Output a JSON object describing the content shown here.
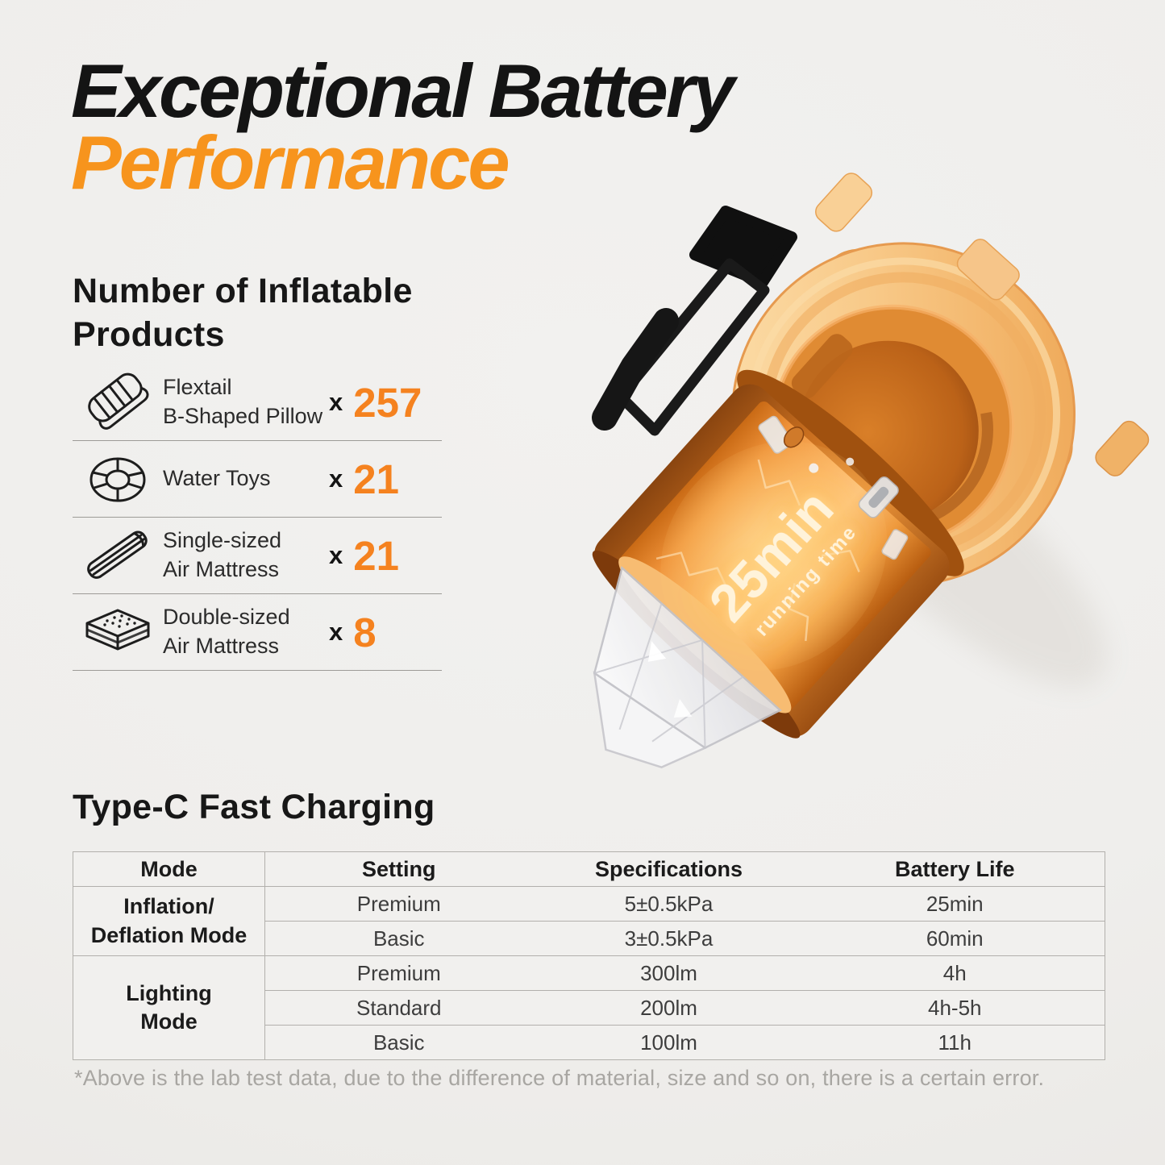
{
  "page": {
    "background": "#f0efec",
    "accent_orange": "#F5821F",
    "title": {
      "line1": "Exceptional Battery",
      "line2": "Performance"
    }
  },
  "inflatable": {
    "heading_lines": [
      "Number of Inflatable",
      "Products"
    ],
    "times_symbol": "x",
    "items": [
      {
        "icon": "pillow-icon",
        "label_lines": [
          "Flextail",
          "B-Shaped Pillow"
        ],
        "count": "257"
      },
      {
        "icon": "swim-ring-icon",
        "label_lines": [
          "Water Toys"
        ],
        "count": "21"
      },
      {
        "icon": "single-mattress-icon",
        "label_lines": [
          "Single-sized",
          "Air Mattress"
        ],
        "count": "21"
      },
      {
        "icon": "double-mattress-icon",
        "label_lines": [
          "Double-sized",
          "Air Mattress"
        ],
        "count": "8"
      }
    ]
  },
  "product": {
    "badge_line1": "25min",
    "badge_line2": "running time"
  },
  "charging": {
    "heading": "Type-C Fast Charging",
    "table": {
      "headers": [
        "Mode",
        "Setting",
        "Specifications",
        "Battery Life"
      ],
      "groups": [
        {
          "mode_lines": [
            "Inflation/",
            "Deflation Mode"
          ],
          "rows": [
            [
              "Premium",
              "5±0.5kPa",
              "25min"
            ],
            [
              "Basic",
              "3±0.5kPa",
              "60min"
            ]
          ]
        },
        {
          "mode_lines": [
            "Lighting",
            "Mode"
          ],
          "rows": [
            [
              "Premium",
              "300lm",
              "4h"
            ],
            [
              "Standard",
              "200lm",
              "4h-5h"
            ],
            [
              "Basic",
              "100lm",
              "11h"
            ]
          ]
        }
      ]
    },
    "note": "*Above is the lab test data, due to the difference of material, size and so on, there is a certain error."
  }
}
